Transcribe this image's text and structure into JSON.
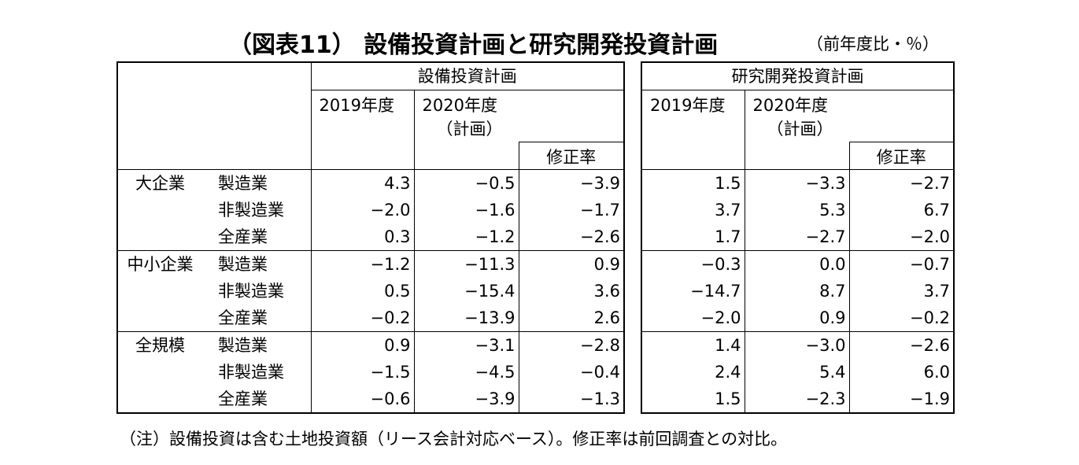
{
  "title": "（図表11） 設備投資計画と研究開発投資計画",
  "unit": "（前年度比・％）",
  "headers": {
    "capex": "設備投資計画",
    "rnd": "研究開発投資計画",
    "y2019": "2019年度",
    "y2020": "2020年度",
    "plan": "（計画）",
    "revision": "修正率"
  },
  "rows": [
    {
      "size": "大企業",
      "industry": "製造業",
      "capex": [
        "4.3",
        "−0.5",
        "−3.9"
      ],
      "rnd": [
        "1.5",
        "−3.3",
        "−2.7"
      ]
    },
    {
      "size": "",
      "industry": "非製造業",
      "capex": [
        "−2.0",
        "−1.6",
        "−1.7"
      ],
      "rnd": [
        "3.7",
        "5.3",
        "6.7"
      ]
    },
    {
      "size": "",
      "industry": "全産業",
      "capex": [
        "0.3",
        "−1.2",
        "−2.6"
      ],
      "rnd": [
        "1.7",
        "−2.7",
        "−2.0"
      ]
    },
    {
      "size": "中小企業",
      "industry": "製造業",
      "capex": [
        "−1.2",
        "−11.3",
        "0.9"
      ],
      "rnd": [
        "−0.3",
        "0.0",
        "−0.7"
      ]
    },
    {
      "size": "",
      "industry": "非製造業",
      "capex": [
        "0.5",
        "−15.4",
        "3.6"
      ],
      "rnd": [
        "−14.7",
        "8.7",
        "3.7"
      ]
    },
    {
      "size": "",
      "industry": "全産業",
      "capex": [
        "−0.2",
        "−13.9",
        "2.6"
      ],
      "rnd": [
        "−2.0",
        "0.9",
        "−0.2"
      ]
    },
    {
      "size": "全規模",
      "industry": "製造業",
      "capex": [
        "0.9",
        "−3.1",
        "−2.8"
      ],
      "rnd": [
        "1.4",
        "−3.0",
        "−2.6"
      ]
    },
    {
      "size": "",
      "industry": "非製造業",
      "capex": [
        "−1.5",
        "−4.5",
        "−0.4"
      ],
      "rnd": [
        "2.4",
        "5.4",
        "6.0"
      ]
    },
    {
      "size": "",
      "industry": "全産業",
      "capex": [
        "−0.6",
        "−3.9",
        "−1.3"
      ],
      "rnd": [
        "1.5",
        "−2.3",
        "−1.9"
      ]
    }
  ],
  "note": "（注）設備投資は含む土地投資額（リース会計対応ベース）。修正率は前回調査との対比。"
}
